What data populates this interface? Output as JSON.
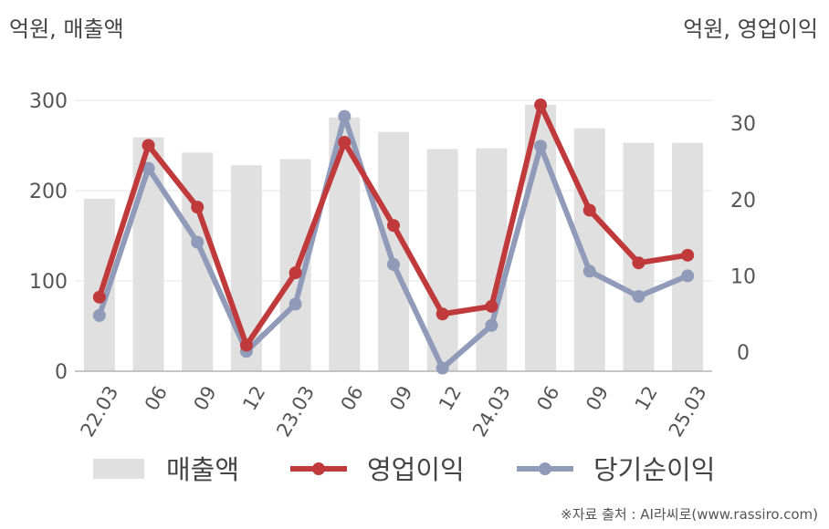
{
  "header": {
    "left_unit": "억원, 매출액",
    "right_unit": "억원, 영업이익"
  },
  "footer": {
    "source": "※자료 출처 : AI라씨로(www.rassiro.com)"
  },
  "chart_data": {
    "type": "bar+line",
    "categories": [
      "22.03",
      "06",
      "09",
      "12",
      "23.03",
      "06",
      "09",
      "12",
      "24.03",
      "06",
      "09",
      "12",
      "25.03"
    ],
    "left_axis": {
      "ticks": [
        "0",
        "100",
        "200",
        "300"
      ],
      "ylim": [
        0,
        300
      ]
    },
    "right_axis": {
      "ticks": [
        "0",
        "10",
        "20",
        "30"
      ],
      "ylim": [
        -2.5,
        33
      ]
    },
    "series": [
      {
        "name": "매출액",
        "type": "bar",
        "axis": "left",
        "color": "#e0e0e0",
        "values": [
          191,
          259,
          242,
          228,
          235,
          281,
          265,
          246,
          247,
          295,
          269,
          253,
          253
        ]
      },
      {
        "name": "영업이익",
        "type": "line",
        "axis": "right",
        "color": "#c0393b",
        "values": [
          7.2,
          27.1,
          19.0,
          0.9,
          10.4,
          27.5,
          16.6,
          5.0,
          6.0,
          32.4,
          18.6,
          11.7,
          12.7
        ]
      },
      {
        "name": "당기순이익",
        "type": "line",
        "axis": "right",
        "color": "#8f9bb8",
        "values": [
          4.8,
          24.1,
          14.4,
          0.1,
          6.3,
          30.9,
          11.5,
          -2.1,
          3.5,
          27.0,
          10.6,
          7.3,
          10.0
        ]
      }
    ],
    "grid": true,
    "legend": "bottom"
  }
}
